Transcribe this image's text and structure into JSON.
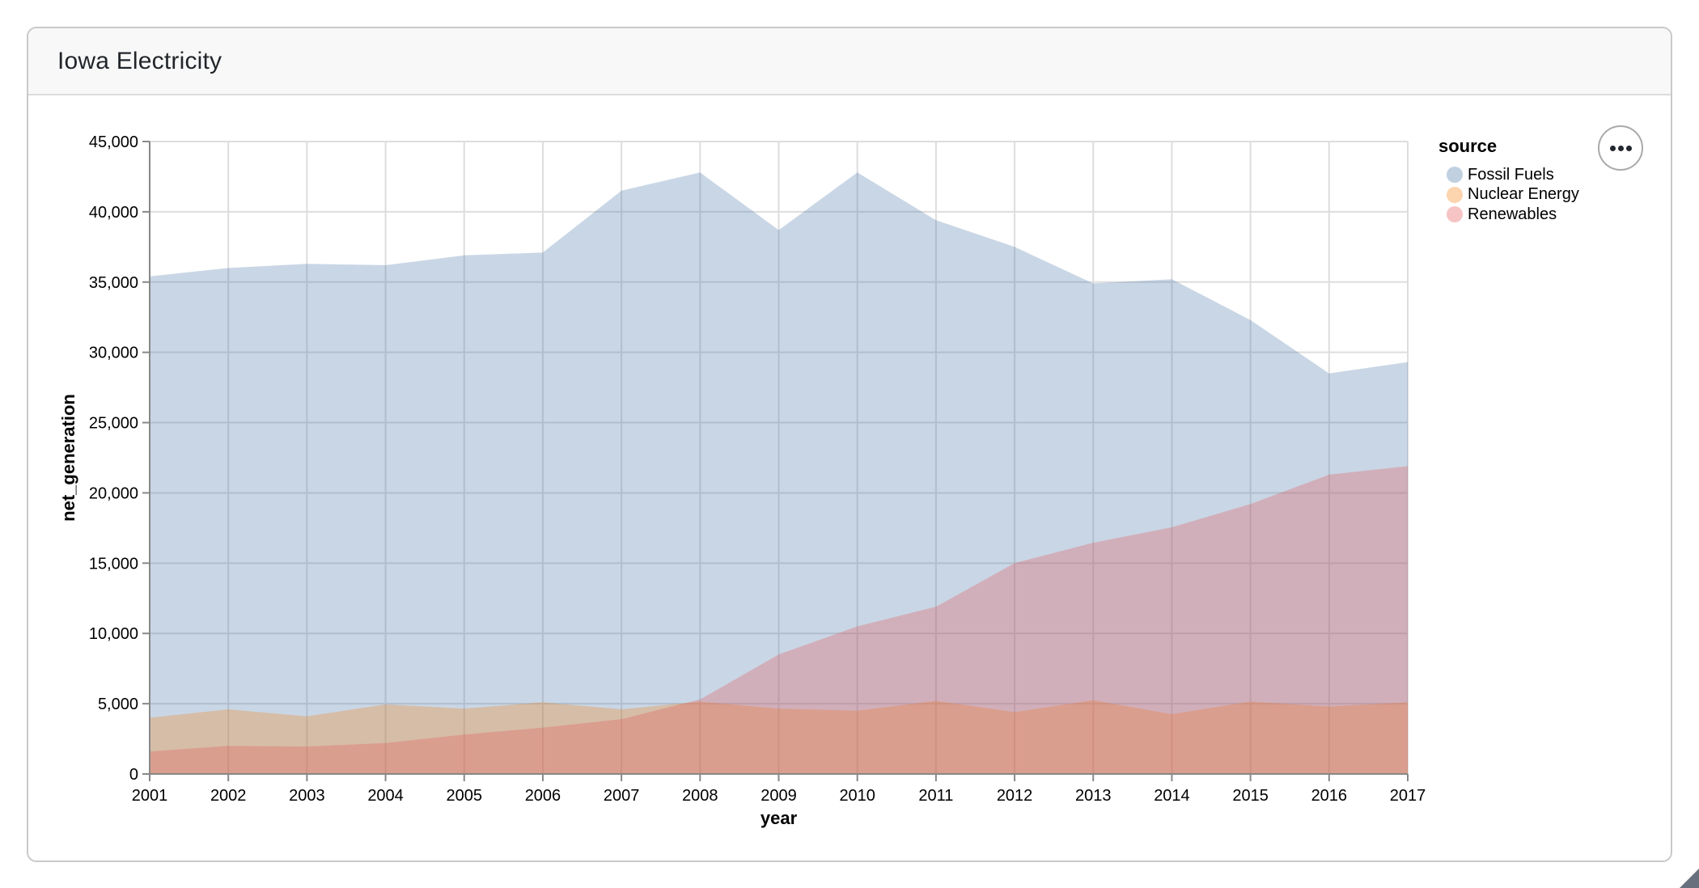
{
  "header": {
    "title": "Iowa Electricity"
  },
  "actions_button": {
    "icon": "ellipsis-horizontal"
  },
  "icons": {
    "actions_menu": "ellipsis-horizontal",
    "window_corner": "resize-grip"
  },
  "legend": {
    "title": "source",
    "position": "right",
    "symbol_opacity": 0.35,
    "entries": [
      {
        "label": "Fossil Fuels",
        "color": "#4c78a8"
      },
      {
        "label": "Nuclear Energy",
        "color": "#f58518"
      },
      {
        "label": "Renewables",
        "color": "#e45756"
      }
    ]
  },
  "chart_data": {
    "type": "area",
    "layered": true,
    "mark_opacity": 0.3,
    "title": "",
    "xlabel": "year",
    "ylabel": "net_generation",
    "x": [
      2001,
      2002,
      2003,
      2004,
      2005,
      2006,
      2007,
      2008,
      2009,
      2010,
      2011,
      2012,
      2013,
      2014,
      2015,
      2016,
      2017
    ],
    "series": [
      {
        "name": "Fossil Fuels",
        "color": "#4c78a8",
        "values": [
          35400,
          36000,
          36300,
          36200,
          36900,
          37100,
          41500,
          42800,
          38700,
          42800,
          39400,
          37500,
          34900,
          35200,
          32300,
          28500,
          29300
        ]
      },
      {
        "name": "Nuclear Energy",
        "color": "#f58518",
        "values": [
          4000,
          4600,
          4100,
          4950,
          4650,
          5100,
          4600,
          5150,
          4650,
          4500,
          5200,
          4400,
          5250,
          4250,
          5150,
          4800,
          5100
        ]
      },
      {
        "name": "Renewables",
        "color": "#e45756",
        "values": [
          1600,
          2000,
          1950,
          2200,
          2800,
          3300,
          3900,
          5300,
          8500,
          10500,
          11900,
          15000,
          16450,
          17550,
          19200,
          21300,
          21900
        ]
      }
    ],
    "ylim": [
      0,
      45000
    ],
    "ytick_step": 5000,
    "y_tick_format": "thousands-comma",
    "grid": true,
    "legend_position": "right"
  }
}
